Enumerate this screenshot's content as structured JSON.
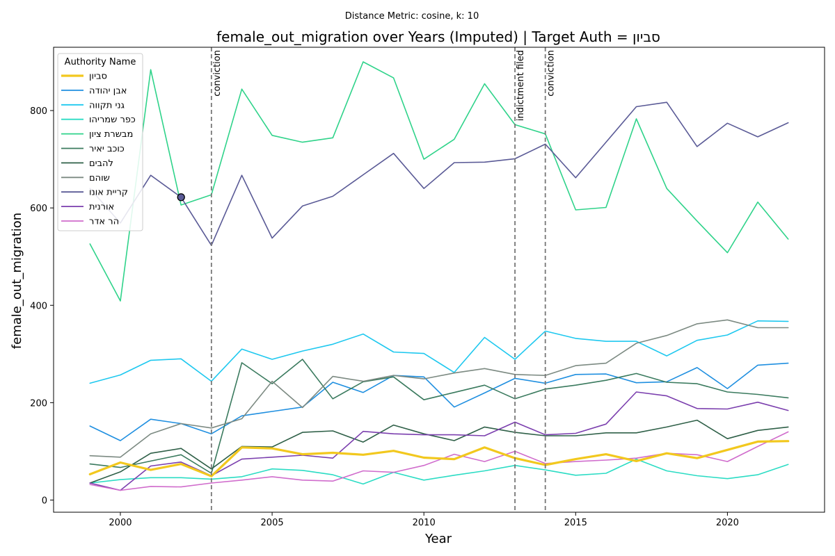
{
  "suptitle": "Distance Metric: cosine, k: 10",
  "chart_data": {
    "type": "line",
    "title": "female_out_migration over Years (Imputed) | Target Auth = סביון",
    "xlabel": "Year",
    "ylabel": "female_out_migration",
    "xlim": [
      1997.8,
      2023.2
    ],
    "ylim": [
      -25,
      930
    ],
    "xticks": [
      2000,
      2005,
      2010,
      2015,
      2020
    ],
    "yticks": [
      0,
      200,
      400,
      600,
      800
    ],
    "grid": false,
    "legend": {
      "title": "Authority Name",
      "placement": "top-left"
    },
    "x": [
      1999,
      2000,
      2001,
      2002,
      2003,
      2004,
      2005,
      2006,
      2007,
      2008,
      2009,
      2010,
      2011,
      2012,
      2013,
      2014,
      2015,
      2016,
      2017,
      2018,
      2019,
      2020,
      2021,
      2022
    ],
    "series": [
      {
        "name": "סביון",
        "color": "#f2c81e",
        "width": 3.2,
        "target": true,
        "values": [
          53,
          77,
          62,
          74,
          49,
          108,
          106,
          94,
          97,
          93,
          101,
          87,
          84,
          108,
          86,
          72,
          84,
          94,
          80,
          96,
          86,
          103,
          120,
          121
        ]
      },
      {
        "name": "אבן יהודה",
        "color": "#1f8fe0",
        "width": 1.6,
        "values": [
          152,
          122,
          166,
          157,
          136,
          173,
          182,
          191,
          242,
          221,
          256,
          253,
          191,
          220,
          250,
          240,
          258,
          259,
          241,
          243,
          272,
          229,
          277,
          281
        ]
      },
      {
        "name": "גני תקווה",
        "color": "#1ec8ef",
        "width": 1.6,
        "values": [
          240,
          257,
          287,
          290,
          244,
          310,
          289,
          306,
          320,
          341,
          304,
          301,
          262,
          334,
          289,
          347,
          332,
          326,
          326,
          296,
          328,
          339,
          368,
          367
        ]
      },
      {
        "name": "כפר שמריהו",
        "color": "#2bdcc4",
        "width": 1.6,
        "values": [
          35,
          42,
          46,
          46,
          43,
          48,
          64,
          61,
          52,
          33,
          57,
          41,
          51,
          60,
          71,
          62,
          51,
          55,
          84,
          60,
          50,
          44,
          52,
          73
        ]
      },
      {
        "name": "מבשרת ציון",
        "color": "#2fd38a",
        "width": 1.6,
        "values": [
          526,
          409,
          884,
          606,
          627,
          844,
          749,
          735,
          744,
          900,
          867,
          700,
          741,
          855,
          771,
          752,
          596,
          601,
          783,
          640,
          573,
          508,
          612,
          536
        ]
      },
      {
        "name": "כוכב יאיר",
        "color": "#3a7a5e",
        "width": 1.6,
        "values": [
          74,
          67,
          80,
          93,
          55,
          282,
          239,
          289,
          208,
          243,
          253,
          206,
          221,
          236,
          208,
          228,
          236,
          246,
          260,
          242,
          239,
          222,
          217,
          210
        ]
      },
      {
        "name": "להבים",
        "color": "#2f6048",
        "width": 1.6,
        "values": [
          35,
          58,
          96,
          106,
          64,
          110,
          109,
          139,
          142,
          119,
          154,
          136,
          122,
          150,
          139,
          132,
          132,
          138,
          138,
          150,
          164,
          126,
          143,
          150
        ]
      },
      {
        "name": "שוהם",
        "color": "#7c8a82",
        "width": 1.6,
        "values": [
          91,
          88,
          136,
          157,
          148,
          167,
          244,
          190,
          254,
          244,
          256,
          249,
          261,
          270,
          258,
          256,
          276,
          281,
          322,
          338,
          362,
          370,
          354,
          354
        ]
      },
      {
        "name": "קריית אונו",
        "color": "#5a5a96",
        "width": 1.6,
        "values": [
          640,
          569,
          667,
          622,
          523,
          667,
          538,
          604,
          624,
          668,
          712,
          640,
          693,
          694,
          701,
          731,
          662,
          735,
          808,
          817,
          726,
          774,
          746,
          775
        ]
      },
      {
        "name": "אורנית",
        "color": "#7b3fae",
        "width": 1.6,
        "values": [
          35,
          20,
          70,
          78,
          50,
          84,
          88,
          92,
          86,
          141,
          136,
          134,
          134,
          132,
          160,
          134,
          137,
          156,
          222,
          214,
          188,
          187,
          201,
          184
        ]
      },
      {
        "name": "הר אדר",
        "color": "#d06ccc",
        "width": 1.6,
        "values": [
          32,
          20,
          28,
          27,
          35,
          41,
          48,
          41,
          39,
          60,
          57,
          71,
          94,
          79,
          100,
          75,
          79,
          82,
          86,
          96,
          93,
          79,
          110,
          140
        ]
      }
    ],
    "annotations": [
      {
        "x": 2003,
        "label": "conviction"
      },
      {
        "x": 2013,
        "label": "indictment filed"
      },
      {
        "x": 2014,
        "label": "conviction"
      }
    ],
    "marker": {
      "x": 2002,
      "y": 622,
      "color": "#5a5a96"
    }
  }
}
